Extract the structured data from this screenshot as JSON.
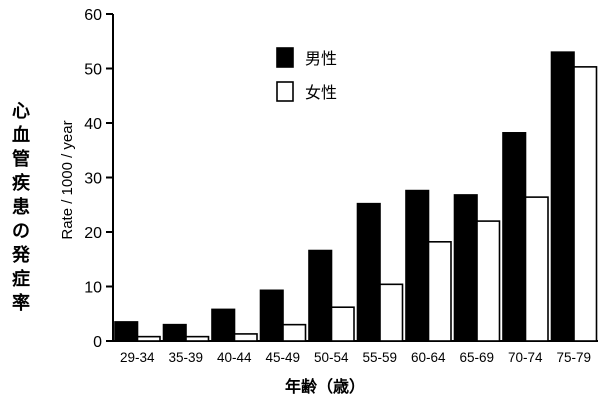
{
  "chart_data": {
    "type": "bar",
    "categories": [
      "29-34",
      "35-39",
      "40-44",
      "45-49",
      "50-54",
      "55-59",
      "60-64",
      "65-69",
      "70-74",
      "75-79"
    ],
    "series": [
      {
        "name": "男性",
        "values": [
          3.5,
          3.0,
          5.8,
          9.3,
          16.6,
          25.2,
          27.6,
          26.8,
          38.2,
          53.0
        ],
        "color": "#000000"
      },
      {
        "name": "女性",
        "values": [
          0.8,
          0.8,
          1.3,
          3.0,
          6.2,
          10.4,
          18.2,
          22.0,
          26.4,
          50.3
        ],
        "color": "#ffffff"
      }
    ],
    "ylim": [
      0,
      60
    ],
    "yticks": [
      0,
      10,
      20,
      30,
      40,
      50,
      60
    ],
    "ylabel": "Rate / 1000 / year",
    "ylabel_jp": "心血管疾患の発症率",
    "xlabel": "年齢（歳）",
    "legend_position": "top-left",
    "grid": false
  }
}
